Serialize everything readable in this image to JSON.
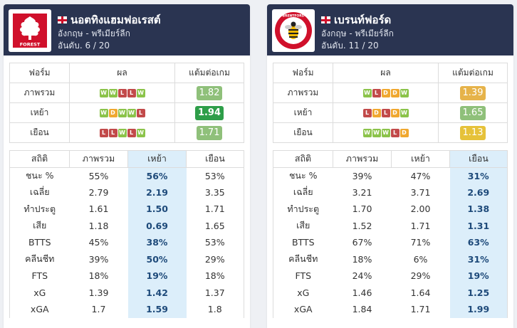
{
  "cards": [
    {
      "team": "นอตทิงแฮมฟอเรสต์",
      "league": "อังกฤษ - พรีเมียร์ลีก",
      "rank": "อันดับ. 6 / 20",
      "logo_text": "FOREST",
      "form_headers": [
        "ฟอร์ม",
        "ผล",
        "แต้มต่อเกม"
      ],
      "form_rows": [
        {
          "label": "ภาพรวม",
          "results": [
            "W",
            "W",
            "L",
            "L",
            "W"
          ],
          "ppg": "1.82"
        },
        {
          "label": "เหย้า",
          "results": [
            "W",
            "D",
            "W",
            "W",
            "L"
          ],
          "ppg": "1.94"
        },
        {
          "label": "เยือน",
          "results": [
            "L",
            "L",
            "W",
            "L",
            "W"
          ],
          "ppg": "1.71"
        }
      ],
      "stats_headers": [
        "สถิติ",
        "ภาพรวม",
        "เหย้า",
        "เยือน"
      ],
      "stats_rows": [
        {
          "label": "ชนะ %",
          "vals": [
            "55%",
            "56%",
            "53%"
          ]
        },
        {
          "label": "เฉลี่ย",
          "vals": [
            "2.79",
            "2.19",
            "3.35"
          ]
        },
        {
          "label": "ทำประตู",
          "vals": [
            "1.61",
            "1.50",
            "1.71"
          ]
        },
        {
          "label": "เสีย",
          "vals": [
            "1.18",
            "0.69",
            "1.65"
          ]
        },
        {
          "label": "BTTS",
          "vals": [
            "45%",
            "38%",
            "53%"
          ]
        },
        {
          "label": "คลีนชีท",
          "vals": [
            "39%",
            "50%",
            "29%"
          ]
        },
        {
          "label": "FTS",
          "vals": [
            "18%",
            "19%",
            "18%"
          ]
        },
        {
          "label": "xG",
          "vals": [
            "1.39",
            "1.42",
            "1.37"
          ]
        },
        {
          "label": "xGA",
          "vals": [
            "1.7",
            "1.59",
            "1.8"
          ]
        }
      ]
    },
    {
      "team": "เบรนท์ฟอร์ด",
      "league": "อังกฤษ - พรีเมียร์ลีก",
      "rank": "อันดับ. 11 / 20",
      "logo_text": "BRENTFORD",
      "form_headers": [
        "ฟอร์ม",
        "ผล",
        "แต้มต่อเกม"
      ],
      "form_rows": [
        {
          "label": "ภาพรวม",
          "results": [
            "W",
            "L",
            "D",
            "D",
            "W"
          ],
          "ppg": "1.39"
        },
        {
          "label": "เหย้า",
          "results": [
            "L",
            "D",
            "L",
            "D",
            "W"
          ],
          "ppg": "1.65"
        },
        {
          "label": "เยือน",
          "results": [
            "W",
            "W",
            "W",
            "L",
            "D"
          ],
          "ppg": "1.13"
        }
      ],
      "stats_headers": [
        "สถิติ",
        "ภาพรวม",
        "เหย้า",
        "เยือน"
      ],
      "stats_rows": [
        {
          "label": "ชนะ %",
          "vals": [
            "39%",
            "47%",
            "31%"
          ]
        },
        {
          "label": "เฉลี่ย",
          "vals": [
            "3.21",
            "3.71",
            "2.69"
          ]
        },
        {
          "label": "ทำประตู",
          "vals": [
            "1.70",
            "2.00",
            "1.38"
          ]
        },
        {
          "label": "เสีย",
          "vals": [
            "1.52",
            "1.71",
            "1.31"
          ]
        },
        {
          "label": "BTTS",
          "vals": [
            "67%",
            "71%",
            "63%"
          ]
        },
        {
          "label": "คลีนชีท",
          "vals": [
            "18%",
            "6%",
            "31%"
          ]
        },
        {
          "label": "FTS",
          "vals": [
            "24%",
            "29%",
            "19%"
          ]
        },
        {
          "label": "xG",
          "vals": [
            "1.46",
            "1.64",
            "1.25"
          ]
        },
        {
          "label": "xGA",
          "vals": [
            "1.84",
            "1.71",
            "1.99"
          ]
        }
      ]
    }
  ],
  "colors": {
    "header_bg": "#2a3451",
    "highlight_bg": "#dceefa",
    "win": "#8bc34a",
    "draw": "#f0a830",
    "loss": "#c24a4a"
  }
}
